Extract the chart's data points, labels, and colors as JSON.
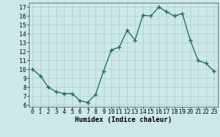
{
  "x": [
    0,
    1,
    2,
    3,
    4,
    5,
    6,
    7,
    8,
    9,
    10,
    11,
    12,
    13,
    14,
    15,
    16,
    17,
    18,
    19,
    20,
    21,
    22,
    23
  ],
  "y": [
    10.0,
    9.3,
    8.0,
    7.5,
    7.3,
    7.3,
    6.5,
    6.3,
    7.2,
    9.8,
    12.2,
    12.5,
    14.4,
    13.3,
    16.1,
    16.0,
    17.0,
    16.5,
    16.0,
    16.3,
    13.3,
    11.0,
    10.7,
    9.8
  ],
  "line_color": "#1e6b5a",
  "marker": "+",
  "marker_size": 4,
  "line_width": 1.0,
  "bg_color": "#cce8e8",
  "grid_color": "#b0d0d0",
  "xlabel": "Humidex (Indice chaleur)",
  "xlabel_fontsize": 7,
  "tick_fontsize": 6,
  "xlim": [
    -0.5,
    23.5
  ],
  "ylim": [
    5.8,
    17.5
  ],
  "yticks": [
    6,
    7,
    8,
    9,
    10,
    11,
    12,
    13,
    14,
    15,
    16,
    17
  ],
  "xticks": [
    0,
    1,
    2,
    3,
    4,
    5,
    6,
    7,
    8,
    9,
    10,
    11,
    12,
    13,
    14,
    15,
    16,
    17,
    18,
    19,
    20,
    21,
    22,
    23
  ]
}
